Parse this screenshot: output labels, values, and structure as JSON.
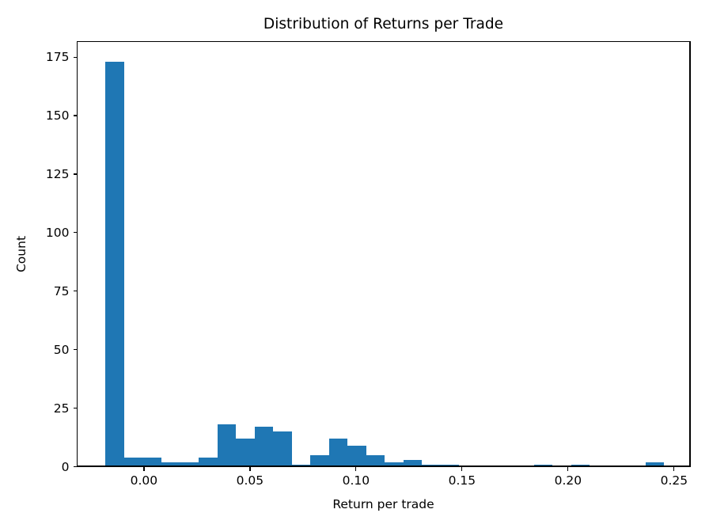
{
  "chart_data": {
    "type": "bar",
    "subtype": "histogram",
    "title": "Distribution of Returns per Trade",
    "xlabel": "Return per trade",
    "ylabel": "Count",
    "bar_color": "#1f77b4",
    "bin_start": -0.0181,
    "bin_width": 0.00878,
    "counts": [
      173,
      4,
      4,
      2,
      2,
      4,
      18,
      12,
      17,
      15,
      1,
      5,
      12,
      9,
      5,
      2,
      3,
      1,
      1,
      0,
      0,
      0,
      0,
      1,
      0,
      1,
      0,
      0,
      0,
      2
    ],
    "xlim": [
      -0.0315,
      0.2575
    ],
    "ylim": [
      0,
      181.65
    ],
    "xticks": {
      "values": [
        0.0,
        0.05,
        0.1,
        0.15,
        0.2,
        0.25
      ],
      "labels": [
        "0.00",
        "0.05",
        "0.10",
        "0.15",
        "0.20",
        "0.25"
      ]
    },
    "yticks": {
      "values": [
        0,
        25,
        50,
        75,
        100,
        125,
        150,
        175
      ],
      "labels": [
        "0",
        "25",
        "50",
        "75",
        "100",
        "125",
        "150",
        "175"
      ]
    },
    "grid": false,
    "legend_position": "none"
  }
}
